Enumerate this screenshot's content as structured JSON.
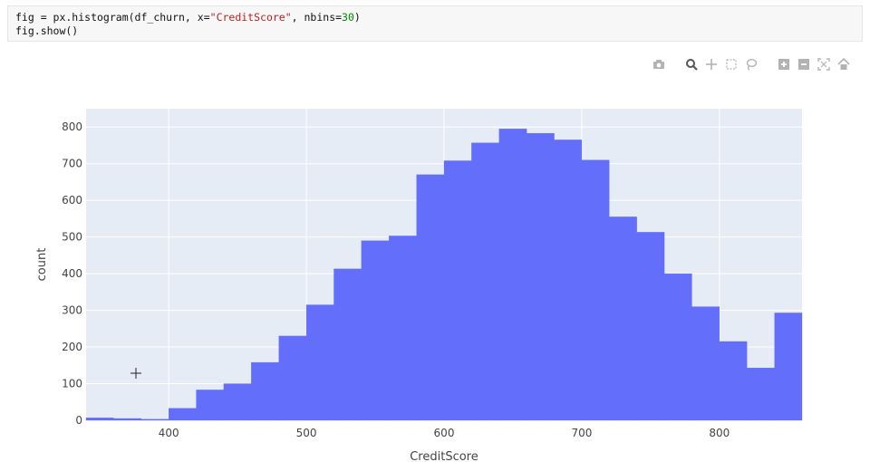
{
  "code": {
    "line1_parts": [
      {
        "t": "fig = px.histogram(df_churn, x=",
        "c": ""
      },
      {
        "t": "\"CreditScore\"",
        "c": "tok-str"
      },
      {
        "t": ", nbins=",
        "c": ""
      },
      {
        "t": "30",
        "c": "tok-num"
      },
      {
        "t": ")",
        "c": ""
      }
    ],
    "line2": "fig.show()"
  },
  "modebar": {
    "icons": [
      "camera-icon",
      "zoom-icon",
      "pan-icon",
      "box-select-icon",
      "lasso-icon",
      "zoom-in-icon",
      "zoom-out-icon",
      "autoscale-icon",
      "reset-axes-icon",
      "plotly-logo-icon"
    ]
  },
  "colors": {
    "bar": "#636efa",
    "plot_bg": "#e5ecf6",
    "grid": "#ffffff",
    "text": "#444444"
  },
  "chart_data": {
    "type": "bar",
    "title": "",
    "xlabel": "CreditScore",
    "ylabel": "count",
    "xlim": [
      340,
      860
    ],
    "ylim": [
      0,
      850
    ],
    "xticks": [
      400,
      500,
      600,
      700,
      800
    ],
    "yticks": [
      0,
      100,
      200,
      300,
      400,
      500,
      600,
      700,
      800
    ],
    "bin_width": 20,
    "bin_starts": [
      340,
      360,
      380,
      400,
      420,
      440,
      460,
      480,
      500,
      520,
      540,
      560,
      580,
      600,
      620,
      640,
      660,
      680,
      700,
      720,
      740,
      760,
      780,
      800,
      820,
      840
    ],
    "values": [
      7,
      5,
      3,
      33,
      83,
      100,
      158,
      230,
      315,
      413,
      490,
      503,
      670,
      708,
      757,
      795,
      783,
      765,
      710,
      555,
      513,
      400,
      310,
      215,
      143,
      293
    ],
    "grid": true
  }
}
